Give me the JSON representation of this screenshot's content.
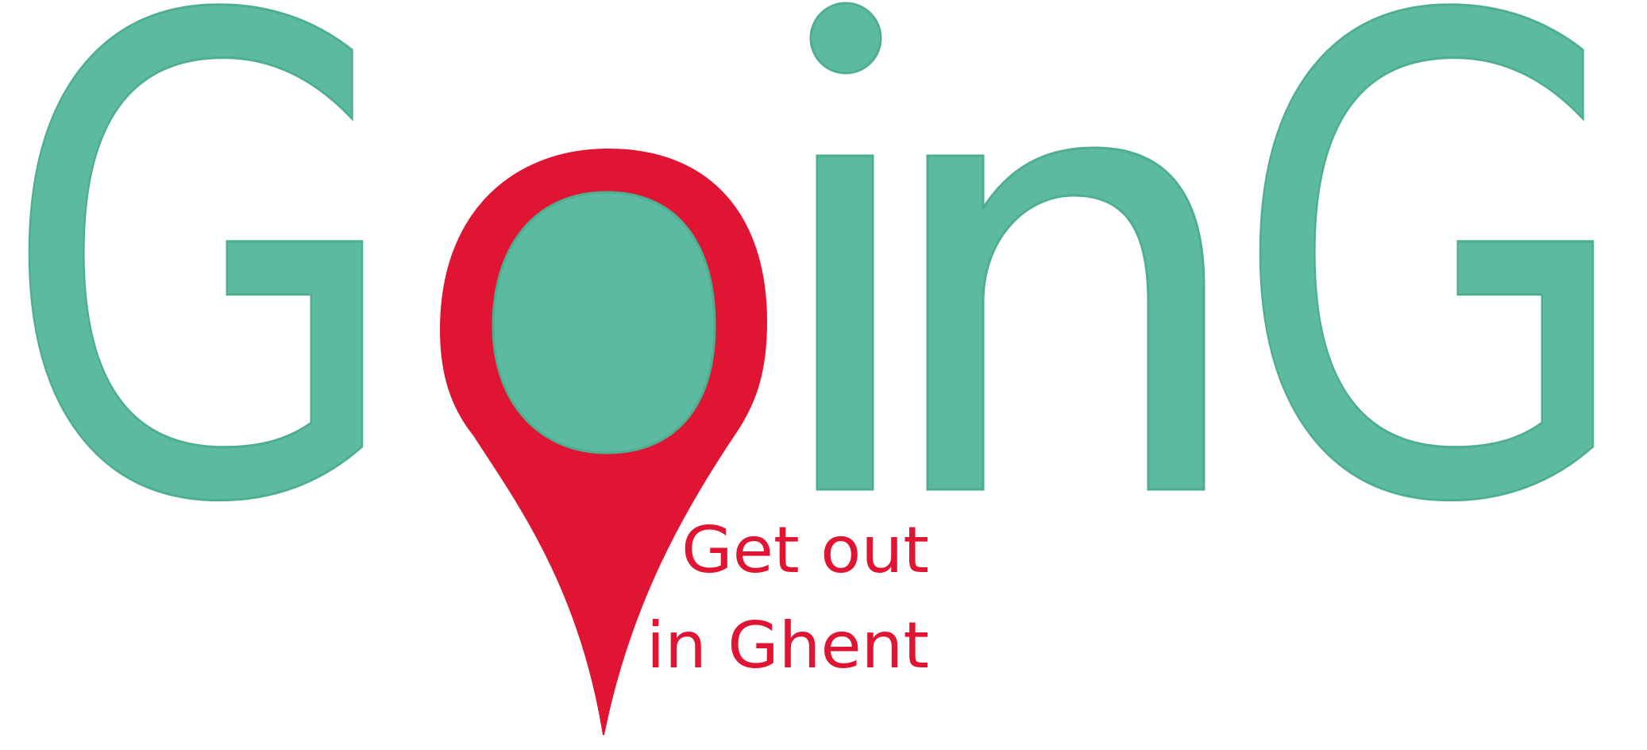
{
  "logo": {
    "wordmark": "GoinG",
    "letters": [
      "G",
      "o",
      "i",
      "n",
      "G"
    ],
    "tagline_line1": "Get out",
    "tagline_line2": "in Ghent",
    "colors": {
      "teal": "#5bba9f",
      "teal_stroke": "#4fae8f",
      "red": "#e01533",
      "background": "#ffffff"
    },
    "icons": {
      "o_letter": "map-pin-icon"
    }
  }
}
